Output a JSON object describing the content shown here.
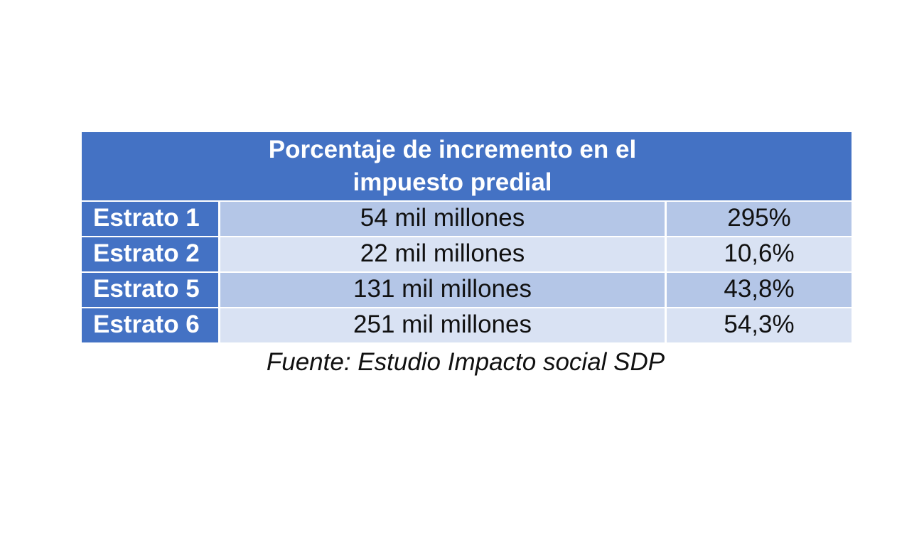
{
  "table": {
    "title_line1": "Porcentaje de incremento en el",
    "title_line2": "impuesto predial",
    "rows": [
      {
        "label": "Estrato 1",
        "amount": "54 mil millones",
        "percent": "295%"
      },
      {
        "label": "Estrato 2",
        "amount": "22 mil millones",
        "percent": "10,6%"
      },
      {
        "label": "Estrato 5",
        "amount": "131 mil millones",
        "percent": "43,8%"
      },
      {
        "label": "Estrato 6",
        "amount": "251 mil millones",
        "percent": "54,3%"
      }
    ]
  },
  "source": "Fuente: Estudio Impacto social SDP",
  "colors": {
    "header_blue": "#4472c4",
    "row_dark": "#b4c6e7",
    "row_light": "#d9e2f3"
  }
}
